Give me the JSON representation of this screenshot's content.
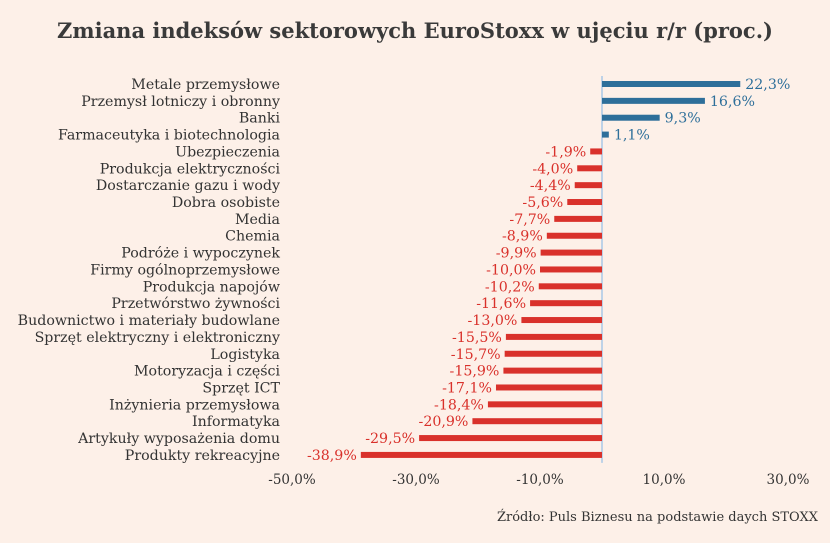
{
  "chart_data": {
    "type": "bar",
    "orientation": "horizontal",
    "title": "Zmiana indeksów sektorowych EuroStoxx w ujęciu r/r (proc.)",
    "categories": [
      "Metale przemysłowe",
      "Przemysł lotniczy i obronny",
      "Banki",
      "Farmaceutyka i biotechnologia",
      "Ubezpieczenia",
      "Produkcja elektryczności",
      "Dostarczanie gazu i wody",
      "Dobra osobiste",
      "Media",
      "Chemia",
      "Podróże i wypoczynek",
      "Firmy ogólnoprzemysłowe",
      "Produkcja napojów",
      "Przetwórstwo żywności",
      "Budownictwo i materiały budowlane",
      "Sprzęt elektryczny i elektroniczny",
      "Logistyka",
      "Motoryzacja i części",
      "Sprzęt ICT",
      "Inżynieria przemysłowa",
      "Informatyka",
      "Artykuły wyposażenia domu",
      "Produkty rekreacyjne"
    ],
    "values": [
      22.3,
      16.6,
      9.3,
      1.1,
      -1.9,
      -4.0,
      -4.4,
      -5.6,
      -7.7,
      -8.9,
      -9.9,
      -10.0,
      -10.2,
      -11.6,
      -13.0,
      -15.5,
      -15.7,
      -15.9,
      -17.1,
      -18.4,
      -20.9,
      -29.5,
      -38.9
    ],
    "value_labels": [
      "22,3%",
      "16,6%",
      "9,3%",
      "1,1%",
      "-1,9%",
      "-4,0%",
      "-4,4%",
      "-5,6%",
      "-7,7%",
      "-8,9%",
      "-9,9%",
      "-10,0%",
      "-10,2%",
      "-11,6%",
      "-13,0%",
      "-15,5%",
      "-15,7%",
      "-15,9%",
      "-17,1%",
      "-18,4%",
      "-20,9%",
      "-29,5%",
      "-38,9%"
    ],
    "xlim": [
      -50,
      30
    ],
    "xticks": [
      -50,
      -30,
      -10,
      10,
      30
    ],
    "xtick_labels": [
      "-50,0%",
      "-30,0%",
      "-10,0%",
      "10,0%",
      "30,0%"
    ],
    "grid": false,
    "colors": {
      "positive": "#2e6f9a",
      "negative": "#d9312b",
      "zero_line": "#9dc3e6"
    }
  },
  "source": "Źródło: Puls Biznesu na podstawie daych STOXX"
}
